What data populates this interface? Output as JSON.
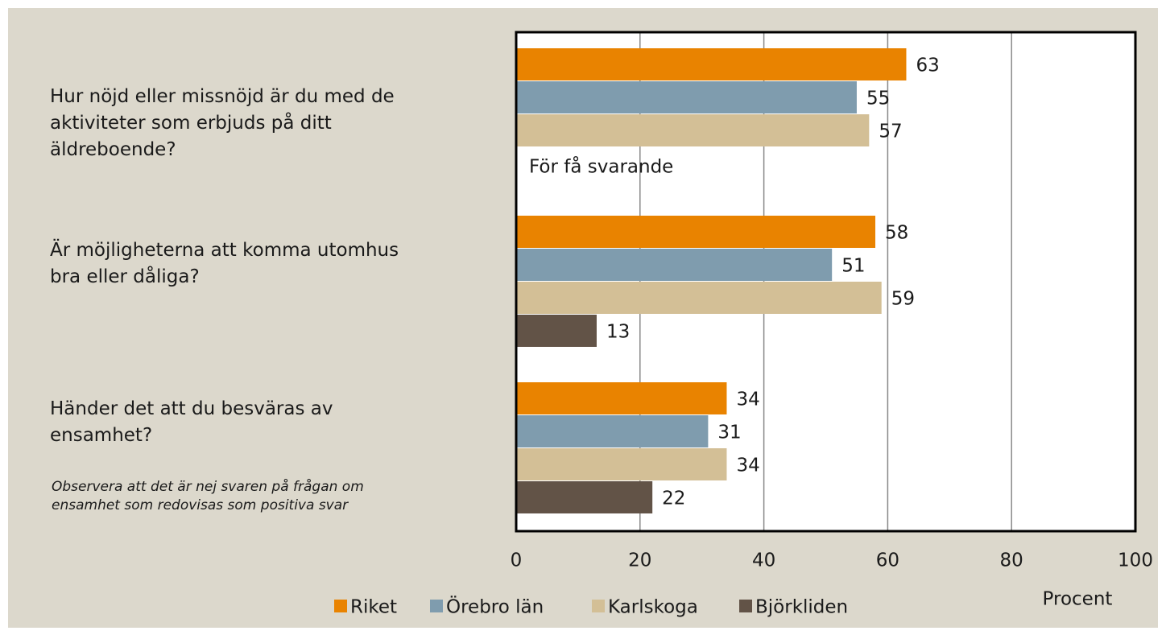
{
  "chart_data": {
    "type": "hbar",
    "categories": [
      "Hur nöjd eller missnöjd är du med de\naktiviteter som erbjuds på ditt\näldreboende?",
      "Är möjligheterna att komma utomhus\nbra eller dåliga?",
      "Händer det att du besväras av\nensamhet?"
    ],
    "series": [
      {
        "name": "Riket",
        "color": "#e98300",
        "values": [
          63,
          58,
          34
        ]
      },
      {
        "name": "Örebro län",
        "color": "#7f9cae",
        "values": [
          55,
          51,
          31
        ]
      },
      {
        "name": "Karlskoga",
        "color": "#d3bf96",
        "values": [
          57,
          59,
          34
        ]
      },
      {
        "name": "Björkliden",
        "color": "#625347",
        "values": [
          null,
          13,
          22
        ]
      }
    ],
    "annotation": "För få svarande",
    "note": "Observera  att det är nej svaren på frågan om\nensamhet som redovisas som positiva svar",
    "xlabel": "Procent",
    "xlim": [
      0,
      100
    ],
    "xticks": [
      0,
      20,
      40,
      60,
      80,
      100
    ],
    "grid": true,
    "legend": "bottom"
  }
}
